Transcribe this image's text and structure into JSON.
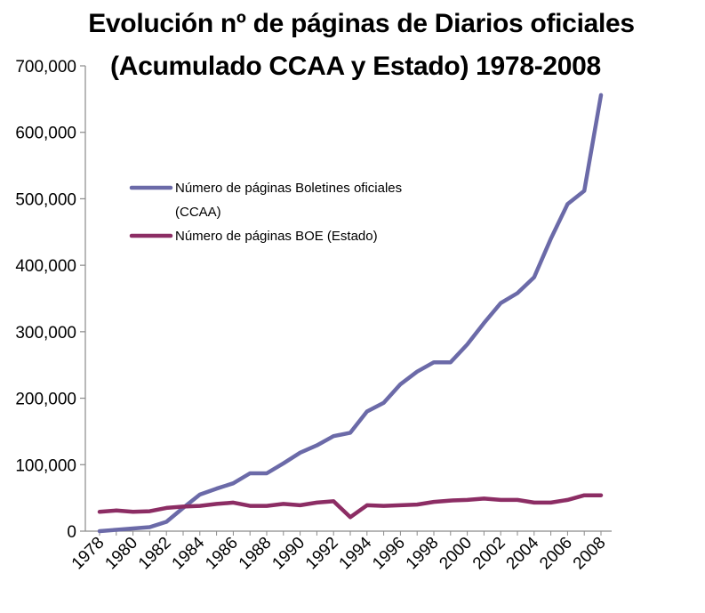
{
  "chart_data": {
    "type": "line",
    "title_line1": "Evolución nº de páginas de Diarios oficiales",
    "title_line2": "(Acumulado CCAA y Estado) 1978-2008",
    "x": [
      1978,
      1979,
      1980,
      1981,
      1982,
      1983,
      1984,
      1985,
      1986,
      1987,
      1988,
      1989,
      1990,
      1991,
      1992,
      1993,
      1994,
      1995,
      1996,
      1997,
      1998,
      1999,
      2000,
      2001,
      2002,
      2003,
      2004,
      2005,
      2006,
      2007,
      2008
    ],
    "x_tick_labels": [
      "1978",
      "1980",
      "1982",
      "1984",
      "1986",
      "1988",
      "1990",
      "1992",
      "1994",
      "1996",
      "1998",
      "2000",
      "2002",
      "2004",
      "2006",
      "2008"
    ],
    "y_tick_labels": [
      "0",
      "100,000",
      "200,000",
      "300,000",
      "400,000",
      "500,000",
      "600,000",
      "700,000"
    ],
    "ylim": [
      0,
      700000
    ],
    "series": [
      {
        "name": "Número de páginas Boletines oficiales",
        "name_line2": "(CCAA)",
        "color": "#6B6AA8",
        "values": [
          0,
          2000,
          4000,
          6000,
          14000,
          35000,
          55000,
          64000,
          72000,
          87000,
          87000,
          102000,
          118000,
          129000,
          143000,
          148000,
          180000,
          193000,
          221000,
          240000,
          254000,
          254000,
          281000,
          313000,
          343000,
          358000,
          382000,
          440000,
          492000,
          512000,
          656000
        ]
      },
      {
        "name": "Número de páginas BOE (Estado)",
        "color": "#8C2D64",
        "values": [
          29000,
          31000,
          29000,
          30000,
          35000,
          37000,
          38000,
          41000,
          43000,
          38000,
          38000,
          41000,
          39000,
          43000,
          45000,
          21000,
          39000,
          38000,
          39000,
          40000,
          44000,
          46000,
          47000,
          49000,
          47000,
          47000,
          43000,
          43000,
          47000,
          54000,
          54000
        ]
      }
    ],
    "legend_position": "upper-left inside plot",
    "grid": false
  }
}
